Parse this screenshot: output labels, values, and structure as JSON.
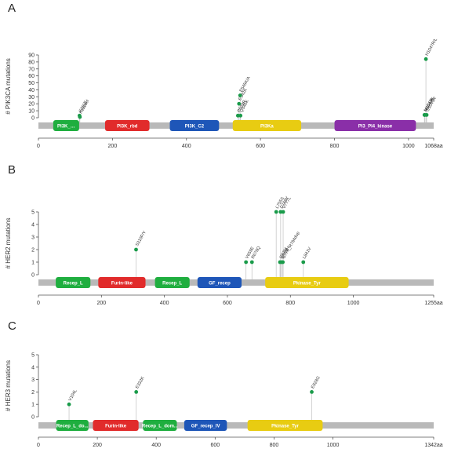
{
  "chart_data": [
    {
      "type": "lollipop",
      "panel_label": "A",
      "ylabel": "# PIK3CA mutations",
      "ylim": [
        0,
        90
      ],
      "yticks": [
        0,
        10,
        20,
        30,
        40,
        50,
        60,
        70,
        80,
        90
      ],
      "xlim": [
        0,
        1068
      ],
      "xticks": [
        "0",
        "200",
        "400",
        "600",
        "800",
        "1000"
      ],
      "protein_end_label": "1068aa",
      "domains": [
        {
          "name": "PI3K_…",
          "start": 40,
          "end": 110,
          "color": "#1fae3f"
        },
        {
          "name": "PI3K_rbd",
          "start": 180,
          "end": 300,
          "color": "#e12b2b"
        },
        {
          "name": "PI3K_C2",
          "start": 355,
          "end": 488,
          "color": "#1e56b8"
        },
        {
          "name": "PI3Ka",
          "start": 525,
          "end": 710,
          "color": "#e8cc12"
        },
        {
          "name": "PI3_PI4_kinase",
          "start": 800,
          "end": 1020,
          "color": "#8a2fa8"
        }
      ],
      "mutations": [
        {
          "label": "K111E",
          "position": 111,
          "count": 3
        },
        {
          "label": "K111del",
          "position": 112,
          "count": 1
        },
        {
          "label": "E542K",
          "position": 542,
          "count": 20
        },
        {
          "label": "E545K/A",
          "position": 545,
          "count": 32
        },
        {
          "label": "P539R",
          "position": 539,
          "count": 3
        },
        {
          "label": "Q546K",
          "position": 546,
          "count": 3
        },
        {
          "label": "H1047R/L",
          "position": 1047,
          "count": 84
        },
        {
          "label": "M1043I",
          "position": 1043,
          "count": 4
        },
        {
          "label": "N1044K",
          "position": 1044,
          "count": 4
        },
        {
          "label": "G1049R",
          "position": 1049,
          "count": 4
        }
      ]
    },
    {
      "type": "lollipop",
      "panel_label": "B",
      "ylabel": "# HER2 mutations",
      "ylim": [
        0,
        5
      ],
      "yticks": [
        0,
        1,
        2,
        3,
        4,
        5
      ],
      "xlim": [
        0,
        1255
      ],
      "xticks": [
        "0",
        "200",
        "400",
        "600",
        "800",
        "1000"
      ],
      "protein_end_label": "1255aa",
      "domains": [
        {
          "name": "Recep_L",
          "start": 55,
          "end": 165,
          "color": "#1fae3f"
        },
        {
          "name": "Furin-like",
          "start": 190,
          "end": 340,
          "color": "#e12b2b"
        },
        {
          "name": "Recep_L",
          "start": 370,
          "end": 480,
          "color": "#1fae3f"
        },
        {
          "name": "GF_recep",
          "start": 505,
          "end": 645,
          "color": "#1e56b8"
        },
        {
          "name": "Pkinase_Tyr",
          "start": 720,
          "end": 985,
          "color": "#e8cc12"
        }
      ],
      "mutations": [
        {
          "label": "S310F/Y",
          "position": 310,
          "count": 2
        },
        {
          "label": "V659E",
          "position": 659,
          "count": 1
        },
        {
          "label": "R678Q",
          "position": 678,
          "count": 1
        },
        {
          "label": "L755S",
          "position": 755,
          "count": 5
        },
        {
          "label": "D769Y",
          "position": 769,
          "count": 5
        },
        {
          "label": "V777L",
          "position": 777,
          "count": 5
        },
        {
          "label": "I767M",
          "position": 767,
          "count": 1
        },
        {
          "label": "D769H",
          "position": 772,
          "count": 1
        },
        {
          "label": "G776_R784dup",
          "position": 776,
          "count": 1
        },
        {
          "label": "L841V",
          "position": 841,
          "count": 1
        }
      ]
    },
    {
      "type": "lollipop",
      "panel_label": "C",
      "ylabel": "# HER3 mutations",
      "ylim": [
        0,
        5
      ],
      "yticks": [
        0,
        1,
        2,
        3,
        4,
        5
      ],
      "xlim": [
        0,
        1342
      ],
      "xticks": [
        "0",
        "200",
        "400",
        "600",
        "800",
        "1000"
      ],
      "protein_end_label": "1342aa",
      "domains": [
        {
          "name": "Recep_L_do...",
          "start": 60,
          "end": 170,
          "color": "#1fae3f"
        },
        {
          "name": "Furin-like",
          "start": 185,
          "end": 340,
          "color": "#e12b2b"
        },
        {
          "name": "Recep_L_dom...",
          "start": 355,
          "end": 470,
          "color": "#1fae3f"
        },
        {
          "name": "GF_recep_IV",
          "start": 495,
          "end": 640,
          "color": "#1e56b8"
        },
        {
          "name": "Pkinase_Tyr",
          "start": 710,
          "end": 965,
          "color": "#e8cc12"
        }
      ],
      "mutations": [
        {
          "label": "V104L",
          "position": 104,
          "count": 1
        },
        {
          "label": "E332K",
          "position": 332,
          "count": 2
        },
        {
          "label": "E928G",
          "position": 928,
          "count": 2
        }
      ]
    }
  ]
}
